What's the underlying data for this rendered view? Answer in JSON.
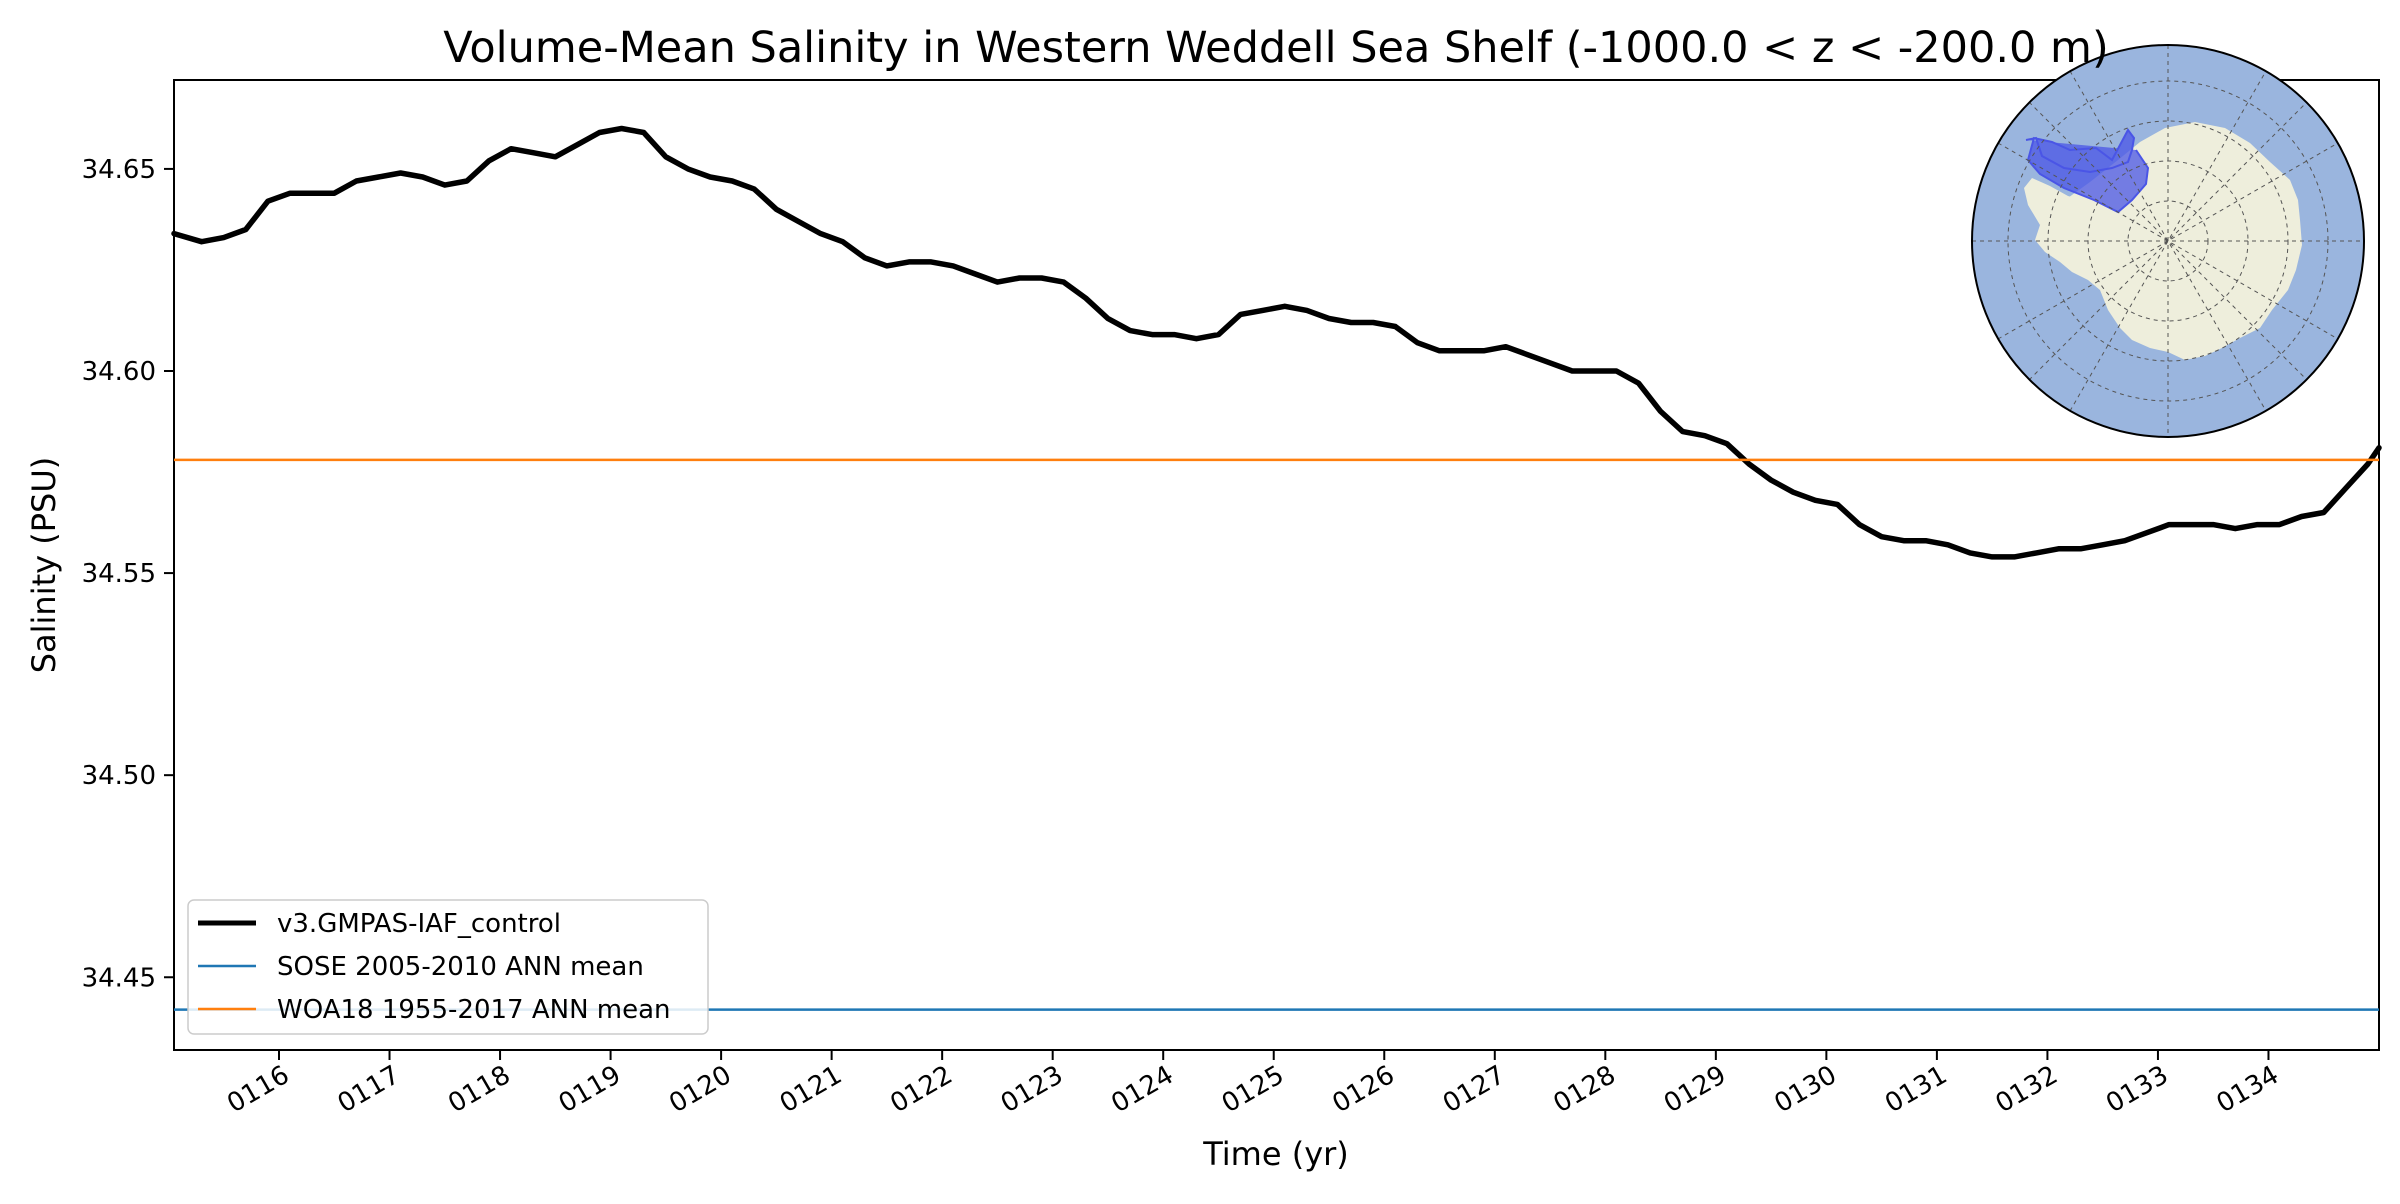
{
  "chart_data": {
    "type": "line",
    "title": "Volume-Mean Salinity in Western Weddell Sea Shelf (-1000.0 < z < -200.0 m)",
    "xlabel": "Time (yr)",
    "ylabel": "Salinity (PSU)",
    "xlim": [
      115.05,
      135.0
    ],
    "ylim": [
      34.432,
      34.672
    ],
    "x_ticks": [
      116,
      117,
      118,
      119,
      120,
      121,
      122,
      123,
      124,
      125,
      126,
      127,
      128,
      129,
      130,
      131,
      132,
      133,
      134
    ],
    "x_tick_labels": [
      "0116",
      "0117",
      "0118",
      "0119",
      "0120",
      "0121",
      "0122",
      "0123",
      "0124",
      "0125",
      "0126",
      "0127",
      "0128",
      "0129",
      "0130",
      "0131",
      "0132",
      "0133",
      "0134"
    ],
    "y_ticks": [
      34.45,
      34.5,
      34.55,
      34.6,
      34.65
    ],
    "y_tick_labels": [
      "34.45",
      "34.50",
      "34.55",
      "34.60",
      "34.65"
    ],
    "grid": false,
    "legend_position": "lower-left",
    "series": [
      {
        "name": "v3.GMPAS-IAF_control",
        "kind": "line",
        "color": "#000000",
        "x": [
          115.05,
          115.3,
          115.5,
          115.7,
          115.9,
          116.1,
          116.3,
          116.5,
          116.7,
          116.9,
          117.1,
          117.3,
          117.5,
          117.7,
          117.9,
          118.1,
          118.3,
          118.5,
          118.7,
          118.9,
          119.1,
          119.3,
          119.5,
          119.7,
          119.9,
          120.1,
          120.3,
          120.5,
          120.7,
          120.9,
          121.1,
          121.3,
          121.5,
          121.7,
          121.9,
          122.1,
          122.3,
          122.5,
          122.7,
          122.9,
          123.1,
          123.3,
          123.5,
          123.7,
          123.9,
          124.1,
          124.3,
          124.5,
          124.7,
          124.9,
          125.1,
          125.3,
          125.5,
          125.7,
          125.9,
          126.1,
          126.3,
          126.5,
          126.7,
          126.9,
          127.1,
          127.3,
          127.5,
          127.7,
          127.9,
          128.1,
          128.3,
          128.5,
          128.7,
          128.9,
          129.1,
          129.3,
          129.5,
          129.7,
          129.9,
          130.1,
          130.3,
          130.5,
          130.7,
          130.9,
          131.1,
          131.3,
          131.5,
          131.7,
          131.9,
          132.1,
          132.3,
          132.5,
          132.7,
          132.9,
          133.1,
          133.3,
          133.5,
          133.7,
          133.9,
          134.1,
          134.3,
          134.5,
          134.7,
          134.9,
          135.0
        ],
        "y": [
          34.634,
          34.632,
          34.633,
          34.635,
          34.642,
          34.644,
          34.644,
          34.644,
          34.647,
          34.648,
          34.649,
          34.648,
          34.646,
          34.647,
          34.652,
          34.655,
          34.654,
          34.653,
          34.656,
          34.659,
          34.66,
          34.659,
          34.653,
          34.65,
          34.648,
          34.647,
          34.645,
          34.64,
          34.637,
          34.634,
          34.632,
          34.628,
          34.626,
          34.627,
          34.627,
          34.626,
          34.624,
          34.622,
          34.623,
          34.623,
          34.622,
          34.618,
          34.613,
          34.61,
          34.609,
          34.609,
          34.608,
          34.609,
          34.614,
          34.615,
          34.616,
          34.615,
          34.613,
          34.612,
          34.612,
          34.611,
          34.607,
          34.605,
          34.605,
          34.605,
          34.606,
          34.604,
          34.602,
          34.6,
          34.6,
          34.6,
          34.597,
          34.59,
          34.585,
          34.584,
          34.582,
          34.577,
          34.573,
          34.57,
          34.568,
          34.567,
          34.562,
          34.559,
          34.558,
          34.558,
          34.557,
          34.555,
          34.554,
          34.554,
          34.555,
          34.556,
          34.556,
          34.557,
          34.558,
          34.56,
          34.562,
          34.562,
          34.562,
          34.561,
          34.562,
          34.562,
          34.564,
          34.565,
          34.571,
          34.577,
          34.581
        ]
      },
      {
        "name": "SOSE 2005-2010 ANN mean",
        "kind": "hline",
        "color": "#1f77b4",
        "value": 34.442
      },
      {
        "name": "WOA18 1955-2017 ANN mean",
        "kind": "hline",
        "color": "#ff7f0e",
        "value": 34.578
      }
    ]
  },
  "inset_map": {
    "name": "antarctica-region-map",
    "ocean_color": "#9ab5de",
    "land_color": "#eeeedc",
    "region_color": "#4a55e6"
  }
}
